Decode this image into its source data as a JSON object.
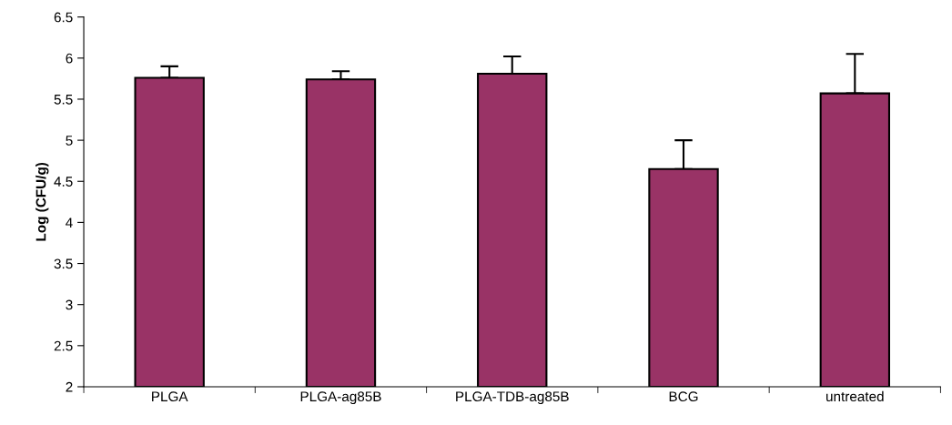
{
  "chart_data": {
    "type": "bar",
    "ylabel": "Log (CFU/g)",
    "categories": [
      "PLGA",
      "PLGA-ag85B",
      "PLGA-TDB-ag85B",
      "BCG",
      "untreated"
    ],
    "values": [
      5.76,
      5.74,
      5.81,
      4.65,
      5.57
    ],
    "errors": [
      [
        5.76,
        5.9
      ],
      [
        5.74,
        5.84
      ],
      [
        5.81,
        6.02
      ],
      [
        4.65,
        5.0
      ],
      [
        5.57,
        6.05
      ]
    ],
    "color": "#993366",
    "ylim": [
      2,
      6.5
    ],
    "yticks": [
      2,
      2.5,
      3,
      3.5,
      4,
      4.5,
      5,
      5.5,
      6,
      6.5
    ],
    "grid": false,
    "legend": false
  }
}
